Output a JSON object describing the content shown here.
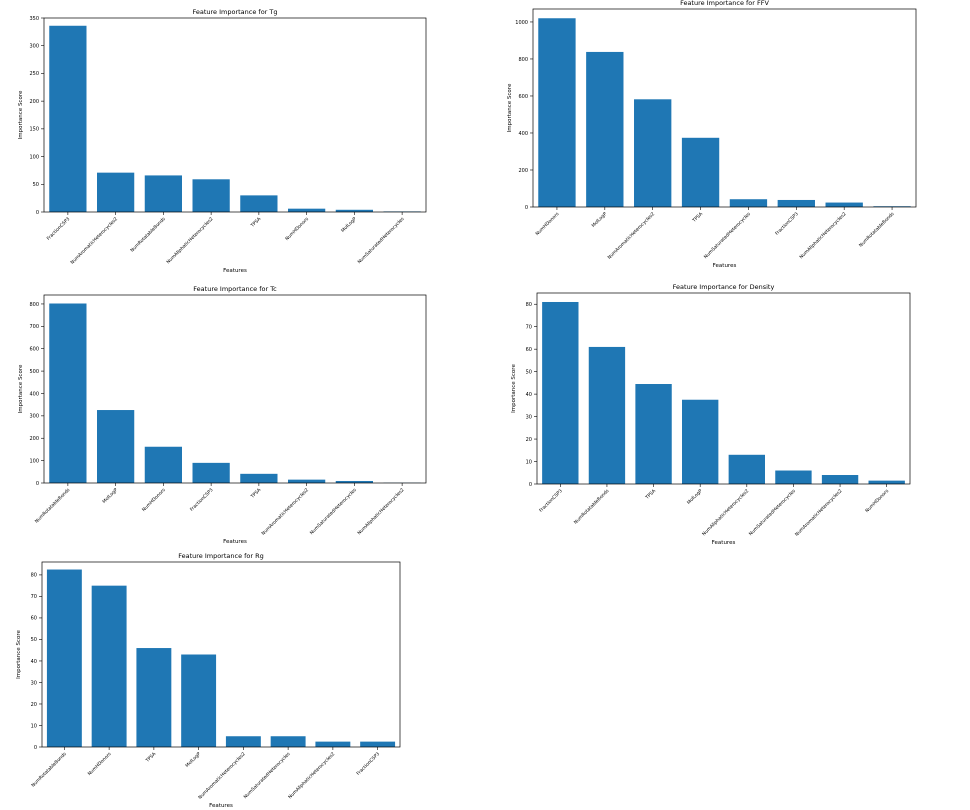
{
  "chart_data": [
    {
      "type": "bar",
      "title": "Feature Importance for Tg",
      "xlabel": "Features",
      "ylabel": "Importance Score",
      "categories": [
        "FractionCSP3",
        "NumAromaticHeterocycles2",
        "NumRotatableBonds",
        "NumAliphaticHeterocycles2",
        "TPSA",
        "NumHDonors",
        "MolLogP",
        "NumSaturatedHeterocycles"
      ],
      "values": [
        336,
        71,
        66,
        59,
        30,
        6,
        4,
        1
      ],
      "ylim": [
        0,
        350
      ],
      "yticks": [
        0,
        50,
        100,
        150,
        200,
        250,
        300,
        350
      ],
      "grid": false,
      "color": "#1f77b4"
    },
    {
      "type": "bar",
      "title": "Feature Importance for FFV",
      "xlabel": "Features",
      "ylabel": "Importance Score",
      "categories": [
        "NumHDonors",
        "MolLogP",
        "NumAromaticHeterocycles2",
        "TPSA",
        "NumSaturatedHeterocycles",
        "FractionCSP3",
        "NumAliphaticHeterocycles2",
        "NumRotatableBonds"
      ],
      "values": [
        1020,
        838,
        582,
        374,
        42,
        38,
        24,
        4
      ],
      "ylim": [
        0,
        1070
      ],
      "yticks": [
        0,
        200,
        400,
        600,
        800,
        1000
      ],
      "grid": false,
      "color": "#1f77b4"
    },
    {
      "type": "bar",
      "title": "Feature Importance for Tc",
      "xlabel": "Features",
      "ylabel": "Importance Score",
      "categories": [
        "NumRotatableBonds",
        "MolLogP",
        "NumHDonors",
        "FractionCSP3",
        "TPSA",
        "NumAromaticHeterocycles2",
        "NumSaturatedHeterocycles",
        "NumAliphaticHeterocycles2"
      ],
      "values": [
        802,
        326,
        162,
        90,
        41,
        15,
        9,
        1
      ],
      "ylim": [
        0,
        840
      ],
      "yticks": [
        0,
        100,
        200,
        300,
        400,
        500,
        600,
        700,
        800
      ],
      "grid": false,
      "color": "#1f77b4"
    },
    {
      "type": "bar",
      "title": "Feature Importance for Density",
      "xlabel": "Features",
      "ylabel": "Importance Score",
      "categories": [
        "FractionCSP3",
        "NumRotatableBonds",
        "TPSA",
        "MolLogP",
        "NumAliphaticHeterocycles2",
        "NumSaturatedHeterocycles",
        "NumAromaticHeterocycles2",
        "NumHDonors"
      ],
      "values": [
        81,
        61,
        44.5,
        37.5,
        13,
        6,
        4,
        1.5
      ],
      "ylim": [
        0,
        85
      ],
      "yticks": [
        0,
        10,
        20,
        30,
        40,
        50,
        60,
        70,
        80
      ],
      "grid": false,
      "color": "#1f77b4"
    },
    {
      "type": "bar",
      "title": "Feature Importance for Rg",
      "xlabel": "Features",
      "ylabel": "Importance Score",
      "categories": [
        "NumRotatableBonds",
        "NumHDonors",
        "TPSA",
        "MolLogP",
        "NumAromaticHeterocycles2",
        "NumSaturatedHeterocycles",
        "NumAliphaticHeterocycles2",
        "FractionCSP3"
      ],
      "values": [
        82.5,
        75,
        46,
        43,
        5,
        5,
        2.5,
        2.5
      ],
      "ylim": [
        0,
        86
      ],
      "yticks": [
        0,
        10,
        20,
        30,
        40,
        50,
        60,
        70,
        80
      ],
      "grid": false,
      "color": "#1f77b4"
    }
  ]
}
